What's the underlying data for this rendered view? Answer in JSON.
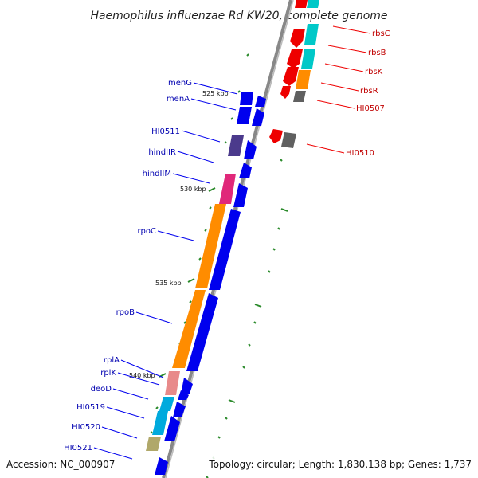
{
  "header": {
    "title": "Haemophilus influenzae Rd KW20, complete genome"
  },
  "footer": {
    "accession": "Accession: NC_000907",
    "topology": "Topology: circular; Length: 1,830,138 bp; Genes: 1,737"
  },
  "scale": {
    "markers": [
      "525 kbp",
      "530 kbp",
      "535 kbp",
      "540 kbp"
    ],
    "tick_color": "#2a8a2a"
  },
  "genes": {
    "reverse": [
      {
        "name": "menG",
        "color": "#0000ee"
      },
      {
        "name": "menA",
        "color": "#0000ee"
      },
      {
        "name": "HI0511",
        "color": "#4b3a8c"
      },
      {
        "name": "hindIIR",
        "color": "#0000ee"
      },
      {
        "name": "hindIIM",
        "color": "#e0287a"
      },
      {
        "name": "rpoC",
        "color": "#ff8c00"
      },
      {
        "name": "rpoB",
        "color": "#ff8c00"
      },
      {
        "name": "rplA",
        "color": "#e88a8a"
      },
      {
        "name": "rplK",
        "color": "#0000ee"
      },
      {
        "name": "deoD",
        "color": "#00aadd"
      },
      {
        "name": "HI0519",
        "color": "#00aadd"
      },
      {
        "name": "HI0520",
        "color": "#b0a86a"
      },
      {
        "name": "HI0521",
        "color": "#0000ee"
      }
    ],
    "forward": [
      {
        "name": "rbsC",
        "color": "#ee0000"
      },
      {
        "name": "rbsB",
        "color": "#00c8c8"
      },
      {
        "name": "rbsK",
        "color": "#ee0000"
      },
      {
        "name": "rbsR",
        "color": "#ff8c00"
      },
      {
        "name": "HI0507",
        "color": "#606060"
      },
      {
        "name": "HI0510",
        "color": "#ee0000"
      }
    ]
  },
  "colors": {
    "backbone": "#888888",
    "blue_label": "#0000b0",
    "red_label": "#c00000"
  }
}
